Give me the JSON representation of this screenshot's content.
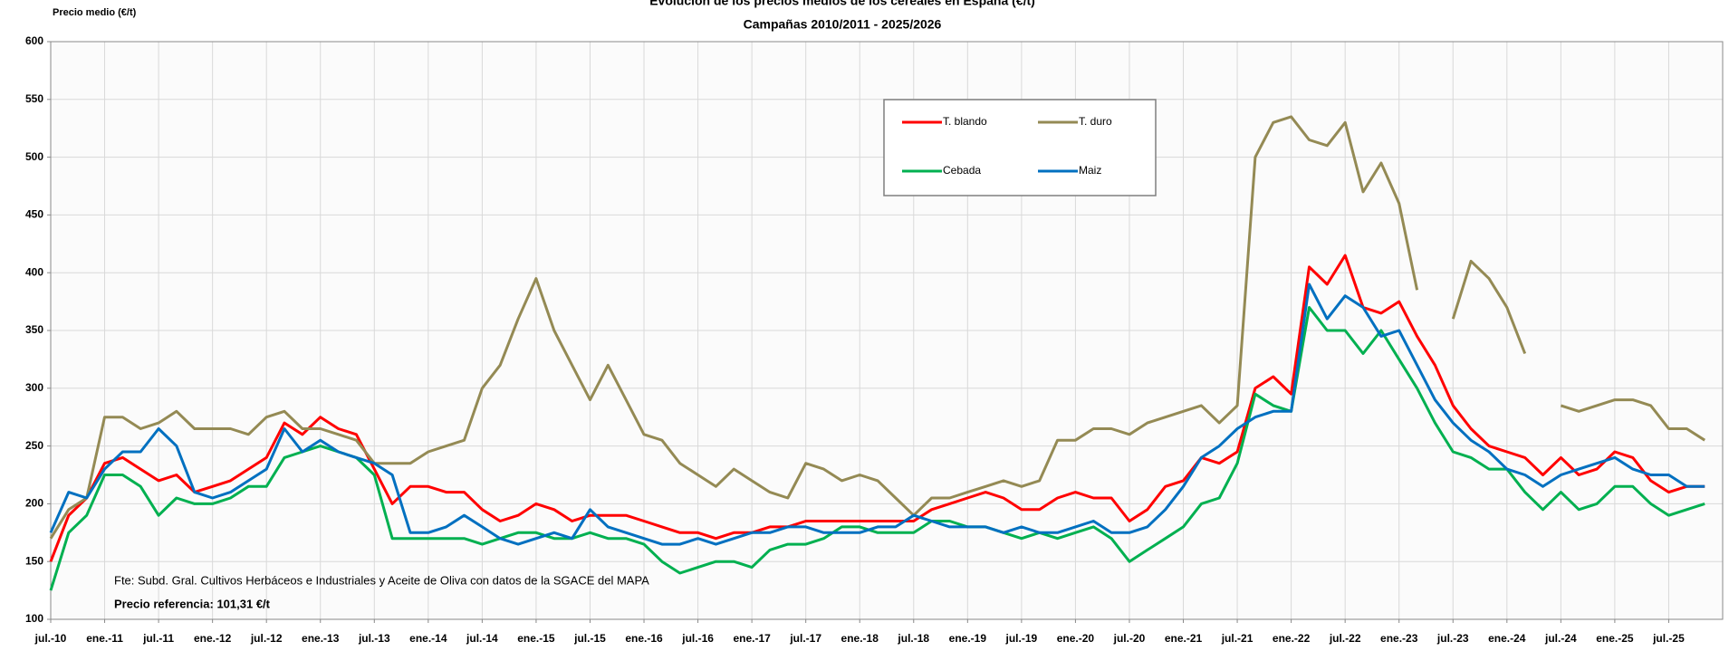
{
  "chart_data": {
    "type": "line",
    "title": "Evolución de los precios medios de los cereales en España (€/t)",
    "subtitle": "Campañas 2010/2011 - 2025/2026",
    "ylabel": "Precio medio (€/t)",
    "annotations": [
      "Fte: Subd. Gral. Cultivos Herbáceos e Industriales y Aceite de Oliva con datos de la SGACE del MAPA",
      "Precio referencia: 101,31 €/t"
    ],
    "x": [
      0,
      2,
      4,
      6,
      8,
      10,
      12,
      14,
      16,
      18,
      20,
      22,
      24,
      26,
      28,
      30,
      32,
      34,
      36,
      38,
      40,
      42,
      44,
      46,
      48,
      50,
      52,
      54,
      56,
      58,
      60,
      62,
      64,
      66,
      68,
      70,
      72,
      74,
      76,
      78,
      80,
      82,
      84,
      86,
      88,
      90,
      92,
      94,
      96,
      98,
      100,
      102,
      104,
      106,
      108,
      110,
      112,
      114,
      116,
      118,
      120,
      122,
      124,
      126,
      128,
      130,
      132,
      134,
      136,
      138,
      140,
      142,
      144,
      146,
      148,
      150,
      152,
      154,
      156,
      158,
      160,
      162,
      164,
      166,
      168,
      170,
      172,
      174,
      176,
      178,
      180,
      182,
      184
    ],
    "xlim": [
      0,
      186
    ],
    "xticks": [
      {
        "value": 0,
        "label": "jul.-10"
      },
      {
        "value": 6,
        "label": "ene.-11"
      },
      {
        "value": 12,
        "label": "jul.-11"
      },
      {
        "value": 18,
        "label": "ene.-12"
      },
      {
        "value": 24,
        "label": "jul.-12"
      },
      {
        "value": 30,
        "label": "ene.-13"
      },
      {
        "value": 36,
        "label": "jul.-13"
      },
      {
        "value": 42,
        "label": "ene.-14"
      },
      {
        "value": 48,
        "label": "jul.-14"
      },
      {
        "value": 54,
        "label": "ene.-15"
      },
      {
        "value": 60,
        "label": "jul.-15"
      },
      {
        "value": 66,
        "label": "ene.-16"
      },
      {
        "value": 72,
        "label": "jul.-16"
      },
      {
        "value": 78,
        "label": "ene.-17"
      },
      {
        "value": 84,
        "label": "jul.-17"
      },
      {
        "value": 90,
        "label": "ene.-18"
      },
      {
        "value": 96,
        "label": "jul.-18"
      },
      {
        "value": 102,
        "label": "ene.-19"
      },
      {
        "value": 108,
        "label": "jul.-19"
      },
      {
        "value": 114,
        "label": "ene.-20"
      },
      {
        "value": 120,
        "label": "jul.-20"
      },
      {
        "value": 126,
        "label": "ene.-21"
      },
      {
        "value": 132,
        "label": "jul.-21"
      },
      {
        "value": 138,
        "label": "ene.-22"
      },
      {
        "value": 144,
        "label": "jul.-22"
      },
      {
        "value": 150,
        "label": "ene.-23"
      },
      {
        "value": 156,
        "label": "jul.-23"
      },
      {
        "value": 162,
        "label": "ene.-24"
      },
      {
        "value": 168,
        "label": "jul.-24"
      },
      {
        "value": 174,
        "label": "ene.-25"
      },
      {
        "value": 180,
        "label": "jul.-25"
      }
    ],
    "ylim": [
      100,
      600
    ],
    "yticks": [
      100,
      150,
      200,
      250,
      300,
      350,
      400,
      450,
      500,
      550,
      600
    ],
    "grid": true,
    "legend": "top-center",
    "series": [
      {
        "name": "T. blando",
        "color": "#ff0000",
        "values": [
          150,
          190,
          205,
          235,
          240,
          230,
          220,
          225,
          210,
          215,
          220,
          230,
          240,
          270,
          260,
          275,
          265,
          260,
          230,
          200,
          215,
          215,
          210,
          210,
          195,
          185,
          190,
          200,
          195,
          185,
          190,
          190,
          190,
          185,
          180,
          175,
          175,
          170,
          175,
          175,
          180,
          180,
          185,
          185,
          185,
          185,
          185,
          185,
          185,
          195,
          200,
          205,
          210,
          205,
          195,
          195,
          205,
          210,
          205,
          205,
          185,
          195,
          215,
          220,
          240,
          235,
          245,
          300,
          310,
          295,
          405,
          390,
          415,
          370,
          365,
          375,
          345,
          320,
          285,
          265,
          250,
          245,
          240,
          225,
          240,
          225,
          230,
          245,
          240,
          220,
          210,
          215,
          215
        ]
      },
      {
        "name": "T. duro",
        "color": "#948a54",
        "values": [
          170,
          195,
          205,
          275,
          275,
          265,
          270,
          280,
          265,
          265,
          265,
          260,
          275,
          280,
          265,
          265,
          260,
          255,
          235,
          235,
          235,
          245,
          250,
          255,
          300,
          320,
          360,
          395,
          350,
          320,
          290,
          320,
          290,
          260,
          255,
          235,
          225,
          215,
          230,
          220,
          210,
          205,
          235,
          230,
          220,
          225,
          220,
          205,
          190,
          205,
          205,
          210,
          215,
          220,
          215,
          220,
          255,
          255,
          265,
          265,
          260,
          270,
          275,
          280,
          285,
          270,
          285,
          500,
          530,
          535,
          515,
          510,
          530,
          470,
          495,
          460,
          385,
          null,
          360,
          410,
          395,
          370,
          330,
          null,
          285,
          280,
          285,
          290,
          290,
          285,
          265,
          265,
          255
        ]
      },
      {
        "name": "Cebada",
        "color": "#00b050",
        "values": [
          125,
          175,
          190,
          225,
          225,
          215,
          190,
          205,
          200,
          200,
          205,
          215,
          215,
          240,
          245,
          250,
          245,
          240,
          225,
          170,
          170,
          170,
          170,
          170,
          165,
          170,
          175,
          175,
          170,
          170,
          175,
          170,
          170,
          165,
          150,
          140,
          145,
          150,
          150,
          145,
          160,
          165,
          165,
          170,
          180,
          180,
          175,
          175,
          175,
          185,
          185,
          180,
          180,
          175,
          170,
          175,
          170,
          175,
          180,
          170,
          150,
          160,
          170,
          180,
          200,
          205,
          235,
          295,
          285,
          280,
          370,
          350,
          350,
          330,
          350,
          325,
          300,
          270,
          245,
          240,
          230,
          230,
          210,
          195,
          210,
          195,
          200,
          215,
          215,
          200,
          190,
          195,
          200
        ]
      },
      {
        "name": "Maiz",
        "color": "#0070c0",
        "values": [
          175,
          210,
          205,
          230,
          245,
          245,
          265,
          250,
          210,
          205,
          210,
          220,
          230,
          265,
          245,
          255,
          245,
          240,
          235,
          225,
          175,
          175,
          180,
          190,
          180,
          170,
          165,
          170,
          175,
          170,
          195,
          180,
          175,
          170,
          165,
          165,
          170,
          165,
          170,
          175,
          175,
          180,
          180,
          175,
          175,
          175,
          180,
          180,
          190,
          185,
          180,
          180,
          180,
          175,
          180,
          175,
          175,
          180,
          185,
          175,
          175,
          180,
          195,
          215,
          240,
          250,
          265,
          275,
          280,
          280,
          390,
          360,
          380,
          370,
          345,
          350,
          320,
          290,
          270,
          255,
          245,
          230,
          225,
          215,
          225,
          230,
          235,
          240,
          230,
          225,
          225,
          215,
          215
        ]
      }
    ]
  }
}
